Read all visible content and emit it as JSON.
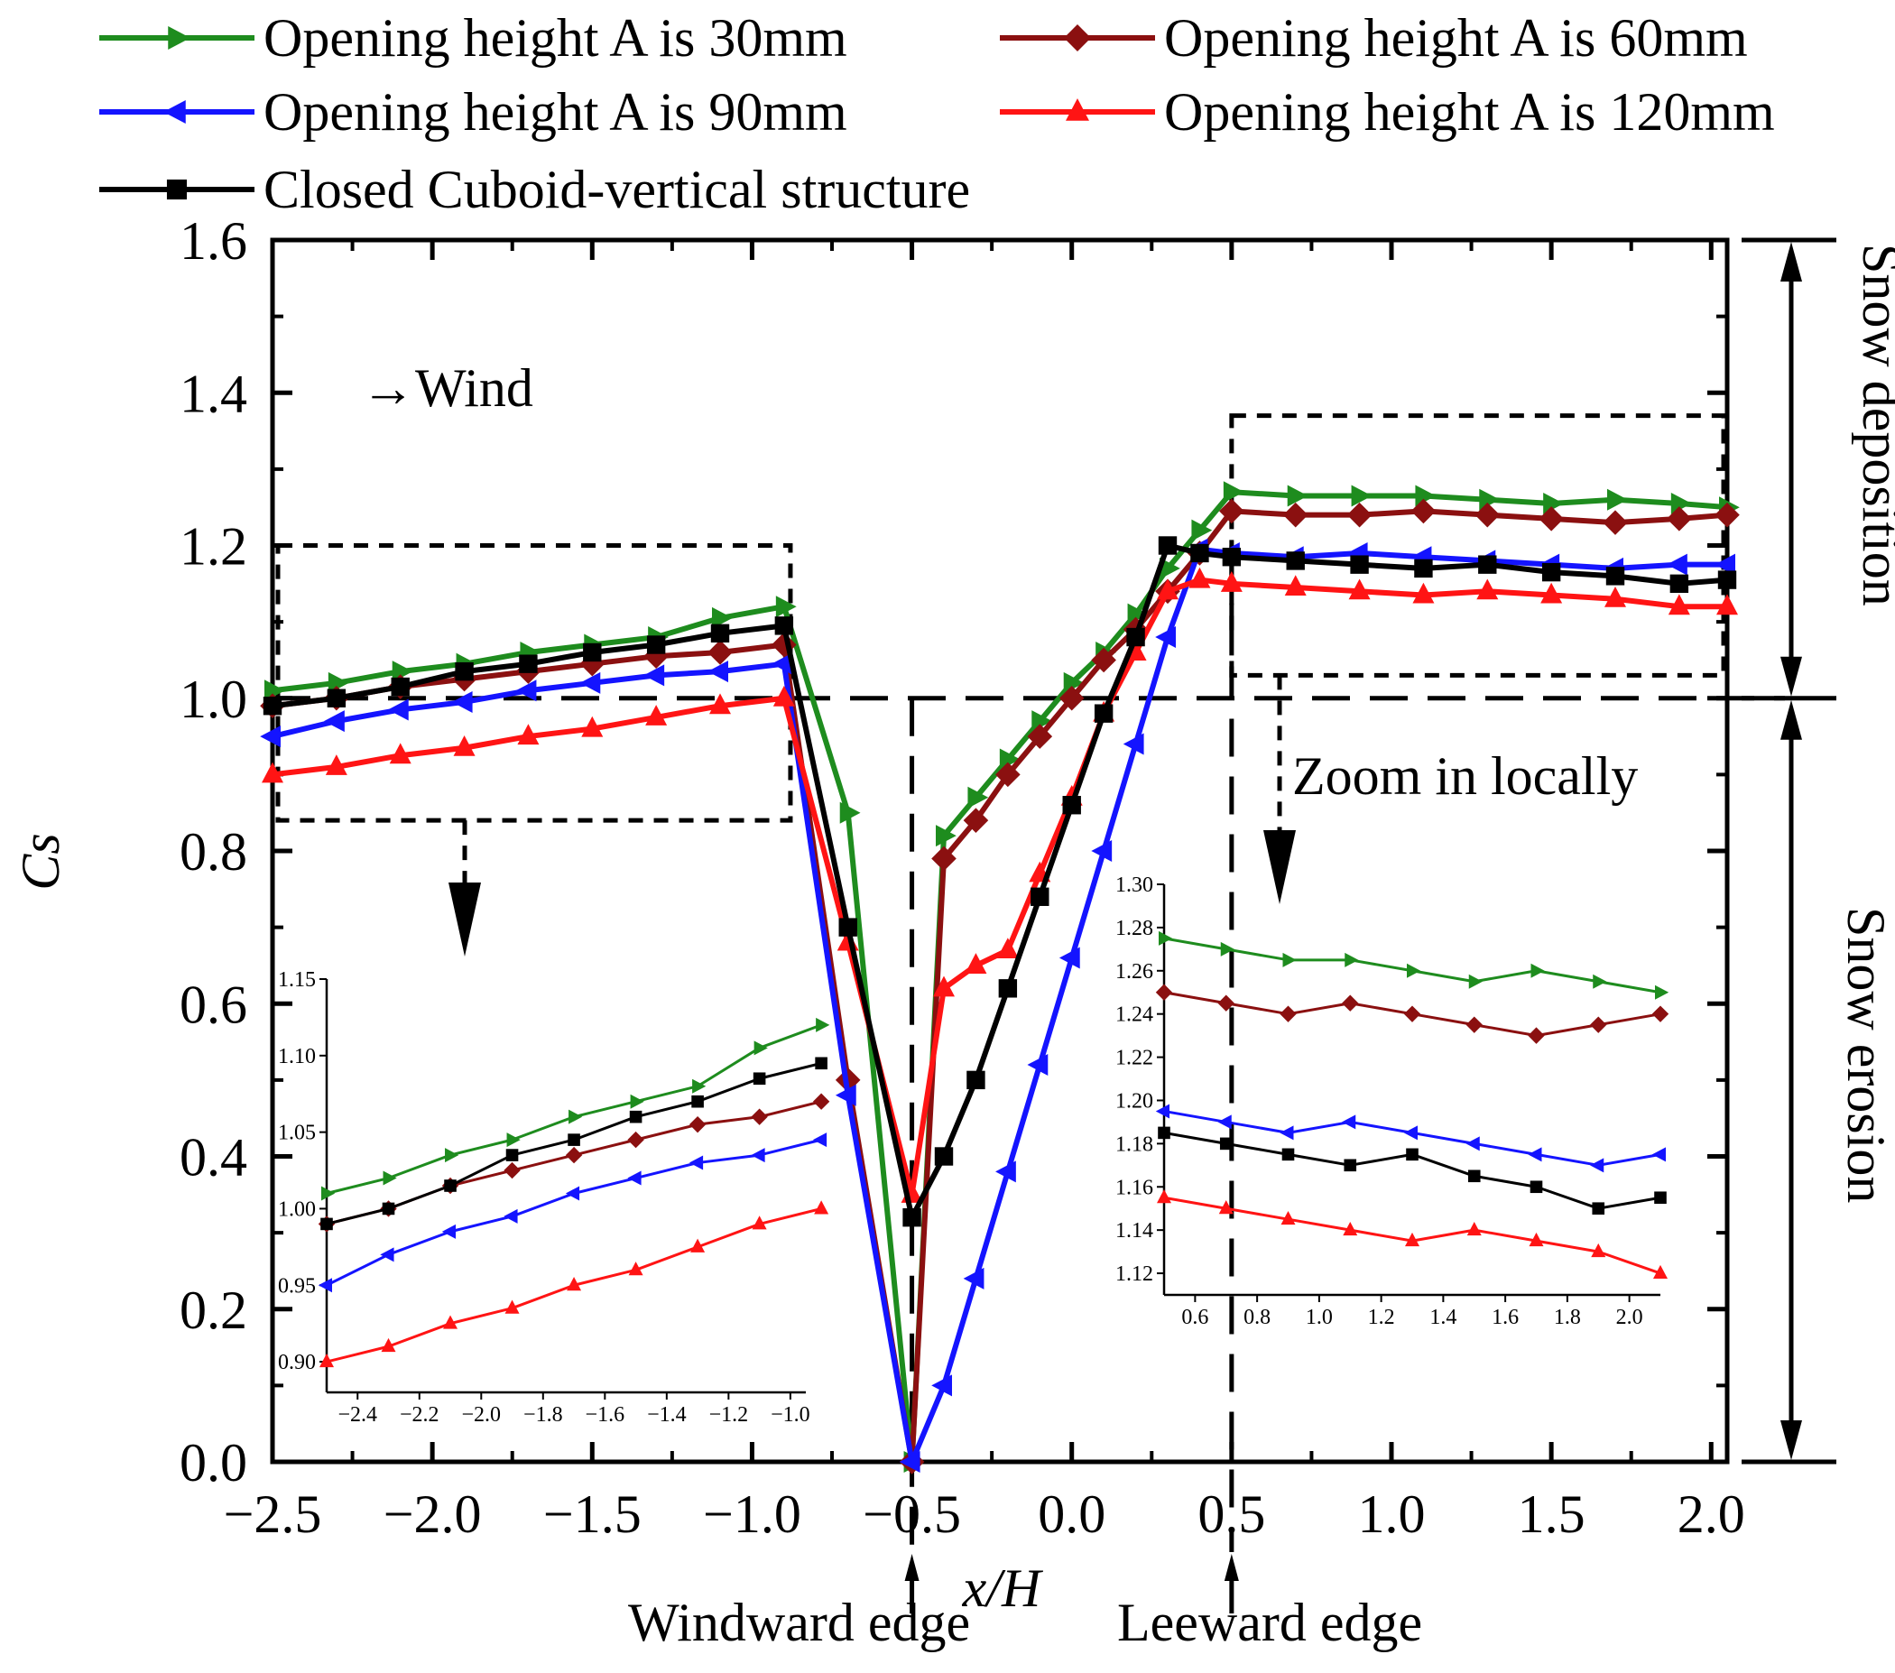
{
  "chart_data": {
    "type": "line",
    "title": "",
    "xlabel": "x/H",
    "ylabel": "Cs",
    "xlim": [
      -2.5,
      2.05
    ],
    "ylim": [
      0.0,
      1.6
    ],
    "xticks": [
      -2.5,
      -2.0,
      -1.5,
      -1.0,
      -0.5,
      0.0,
      0.5,
      1.0,
      1.5,
      2.0
    ],
    "xtick_labels": [
      "−2.5",
      "−2.0",
      "−1.5",
      "−1.0",
      "−0.5",
      "0.0",
      "0.5",
      "1.0",
      "1.5",
      "2.0"
    ],
    "yticks": [
      0.0,
      0.2,
      0.4,
      0.6,
      0.8,
      1.0,
      1.2,
      1.4,
      1.6
    ],
    "ytick_labels": [
      "0.0",
      "0.2",
      "0.4",
      "0.6",
      "0.8",
      "1.0",
      "1.2",
      "1.4",
      "1.6"
    ],
    "legend_position": "top",
    "series": [
      {
        "name": "Opening height A is 30mm",
        "color": "#1e8c1e",
        "marker": "triangle-right",
        "x": [
          -2.5,
          -2.3,
          -2.1,
          -1.9,
          -1.7,
          -1.5,
          -1.3,
          -1.1,
          -0.9,
          -0.7,
          -0.5,
          -0.4,
          -0.3,
          -0.2,
          -0.1,
          0.0,
          0.1,
          0.2,
          0.3,
          0.4,
          0.5,
          0.7,
          0.9,
          1.1,
          1.3,
          1.5,
          1.7,
          1.9,
          2.05
        ],
        "y": [
          1.01,
          1.02,
          1.035,
          1.045,
          1.06,
          1.07,
          1.08,
          1.105,
          1.12,
          0.85,
          0.0,
          0.82,
          0.87,
          0.92,
          0.97,
          1.02,
          1.06,
          1.11,
          1.17,
          1.22,
          1.27,
          1.265,
          1.265,
          1.265,
          1.26,
          1.255,
          1.26,
          1.255,
          1.25
        ]
      },
      {
        "name": "Opening height A is 60mm",
        "color": "#8b1010",
        "marker": "diamond",
        "x": [
          -2.5,
          -2.3,
          -2.1,
          -1.9,
          -1.7,
          -1.5,
          -1.3,
          -1.1,
          -0.9,
          -0.7,
          -0.5,
          -0.4,
          -0.3,
          -0.2,
          -0.1,
          0.0,
          0.1,
          0.2,
          0.3,
          0.4,
          0.5,
          0.7,
          0.9,
          1.1,
          1.3,
          1.5,
          1.7,
          1.9,
          2.05
        ],
        "y": [
          0.99,
          1.0,
          1.015,
          1.025,
          1.035,
          1.045,
          1.055,
          1.06,
          1.07,
          0.5,
          0.0,
          0.79,
          0.84,
          0.9,
          0.95,
          1.0,
          1.05,
          1.09,
          1.14,
          1.19,
          1.245,
          1.24,
          1.24,
          1.245,
          1.24,
          1.235,
          1.23,
          1.235,
          1.24
        ]
      },
      {
        "name": "Opening height A is 90mm",
        "color": "#1414ff",
        "marker": "triangle-left",
        "x": [
          -2.5,
          -2.3,
          -2.1,
          -1.9,
          -1.7,
          -1.5,
          -1.3,
          -1.1,
          -0.9,
          -0.7,
          -0.5,
          -0.4,
          -0.3,
          -0.2,
          -0.1,
          0.0,
          0.1,
          0.2,
          0.3,
          0.4,
          0.5,
          0.7,
          0.9,
          1.1,
          1.3,
          1.5,
          1.7,
          1.9,
          2.05
        ],
        "y": [
          0.95,
          0.97,
          0.985,
          0.995,
          1.01,
          1.02,
          1.03,
          1.035,
          1.045,
          0.48,
          0.0,
          0.1,
          0.24,
          0.38,
          0.52,
          0.66,
          0.8,
          0.94,
          1.08,
          1.195,
          1.19,
          1.185,
          1.19,
          1.185,
          1.18,
          1.175,
          1.17,
          1.175,
          1.175
        ]
      },
      {
        "name": "Opening height A is 120mm",
        "color": "#ff1414",
        "marker": "triangle-up",
        "x": [
          -2.5,
          -2.3,
          -2.1,
          -1.9,
          -1.7,
          -1.5,
          -1.3,
          -1.1,
          -0.9,
          -0.7,
          -0.5,
          -0.4,
          -0.3,
          -0.2,
          -0.1,
          0.0,
          0.1,
          0.2,
          0.3,
          0.4,
          0.5,
          0.7,
          0.9,
          1.1,
          1.3,
          1.5,
          1.7,
          1.9,
          2.05
        ],
        "y": [
          0.9,
          0.91,
          0.925,
          0.935,
          0.95,
          0.96,
          0.975,
          0.99,
          1.0,
          0.68,
          0.35,
          0.62,
          0.65,
          0.67,
          0.77,
          0.87,
          0.98,
          1.06,
          1.14,
          1.155,
          1.15,
          1.145,
          1.14,
          1.135,
          1.14,
          1.135,
          1.13,
          1.12,
          1.12
        ]
      },
      {
        "name": "Closed Cuboid-vertical structure",
        "color": "#000000",
        "marker": "square",
        "x": [
          -2.5,
          -2.3,
          -2.1,
          -1.9,
          -1.7,
          -1.5,
          -1.3,
          -1.1,
          -0.9,
          -0.7,
          -0.5,
          -0.4,
          -0.3,
          -0.2,
          -0.1,
          0.0,
          0.1,
          0.2,
          0.3,
          0.4,
          0.5,
          0.7,
          0.9,
          1.1,
          1.3,
          1.5,
          1.7,
          1.9,
          2.05
        ],
        "y": [
          0.99,
          1.0,
          1.015,
          1.035,
          1.045,
          1.06,
          1.07,
          1.085,
          1.095,
          0.7,
          0.32,
          0.4,
          0.5,
          0.62,
          0.74,
          0.86,
          0.98,
          1.08,
          1.2,
          1.19,
          1.185,
          1.18,
          1.175,
          1.17,
          1.175,
          1.165,
          1.16,
          1.15,
          1.155
        ]
      }
    ],
    "insets": [
      {
        "name": "inset-left",
        "xlim": [
          -2.5,
          -0.95
        ],
        "ylim": [
          0.88,
          1.15
        ],
        "xticks": [
          -2.4,
          -2.2,
          -2.0,
          -1.8,
          -1.6,
          -1.4,
          -1.2,
          -1.0
        ],
        "xtick_labels": [
          "−2.4",
          "−2.2",
          "−2.0",
          "−1.8",
          "−1.6",
          "−1.4",
          "−1.2",
          "−1.0"
        ],
        "yticks": [
          0.9,
          0.95,
          1.0,
          1.05,
          1.1,
          1.15
        ],
        "ytick_labels": [
          "0.90",
          "0.95",
          "1.00",
          "1.05",
          "1.10",
          "1.15"
        ],
        "x": [
          -2.5,
          -2.3,
          -2.1,
          -1.9,
          -1.7,
          -1.5,
          -1.3,
          -1.1,
          -0.9
        ],
        "series": {
          "Opening height A is 30mm": [
            1.01,
            1.02,
            1.035,
            1.045,
            1.06,
            1.07,
            1.08,
            1.105,
            1.12
          ],
          "Opening height A is 60mm": [
            0.99,
            1.0,
            1.015,
            1.025,
            1.035,
            1.045,
            1.055,
            1.06,
            1.07
          ],
          "Opening height A is 90mm": [
            0.95,
            0.97,
            0.985,
            0.995,
            1.01,
            1.02,
            1.03,
            1.035,
            1.045
          ],
          "Opening height A is 120mm": [
            0.9,
            0.91,
            0.925,
            0.935,
            0.95,
            0.96,
            0.975,
            0.99,
            1.0
          ],
          "Closed Cuboid-vertical structure": [
            0.99,
            1.0,
            1.015,
            1.035,
            1.045,
            1.06,
            1.07,
            1.085,
            1.095
          ]
        }
      },
      {
        "name": "inset-right",
        "xlim": [
          0.5,
          2.1
        ],
        "ylim": [
          1.11,
          1.3
        ],
        "xticks": [
          0.6,
          0.8,
          1.0,
          1.2,
          1.4,
          1.6,
          1.8,
          2.0
        ],
        "xtick_labels": [
          "0.6",
          "0.8",
          "1.0",
          "1.2",
          "1.4",
          "1.6",
          "1.8",
          "2.0"
        ],
        "yticks": [
          1.12,
          1.14,
          1.16,
          1.18,
          1.2,
          1.22,
          1.24,
          1.26,
          1.28,
          1.3
        ],
        "ytick_labels": [
          "1.12",
          "1.14",
          "1.16",
          "1.18",
          "1.20",
          "1.22",
          "1.24",
          "1.26",
          "1.28",
          "1.30"
        ],
        "x": [
          0.5,
          0.7,
          0.9,
          1.1,
          1.3,
          1.5,
          1.7,
          1.9,
          2.1
        ],
        "series": {
          "Opening height A is 30mm": [
            1.275,
            1.27,
            1.265,
            1.265,
            1.26,
            1.255,
            1.26,
            1.255,
            1.25
          ],
          "Opening height A is 60mm": [
            1.25,
            1.245,
            1.24,
            1.245,
            1.24,
            1.235,
            1.23,
            1.235,
            1.24
          ],
          "Opening height A is 90mm": [
            1.195,
            1.19,
            1.185,
            1.19,
            1.185,
            1.18,
            1.175,
            1.17,
            1.175
          ],
          "Opening height A is 120mm": [
            1.155,
            1.15,
            1.145,
            1.14,
            1.135,
            1.14,
            1.135,
            1.13,
            1.12
          ],
          "Closed Cuboid-vertical structure": [
            1.185,
            1.18,
            1.175,
            1.17,
            1.175,
            1.165,
            1.16,
            1.15,
            1.155
          ]
        }
      }
    ]
  },
  "annotations": {
    "wind": "→Wind",
    "zoom": "Zoom in locally",
    "windward_edge": "Windward edge",
    "leeward_edge": "Leeward edge",
    "snow_deposition": "Snow deposition",
    "snow_erosion": "Snow erosion"
  }
}
